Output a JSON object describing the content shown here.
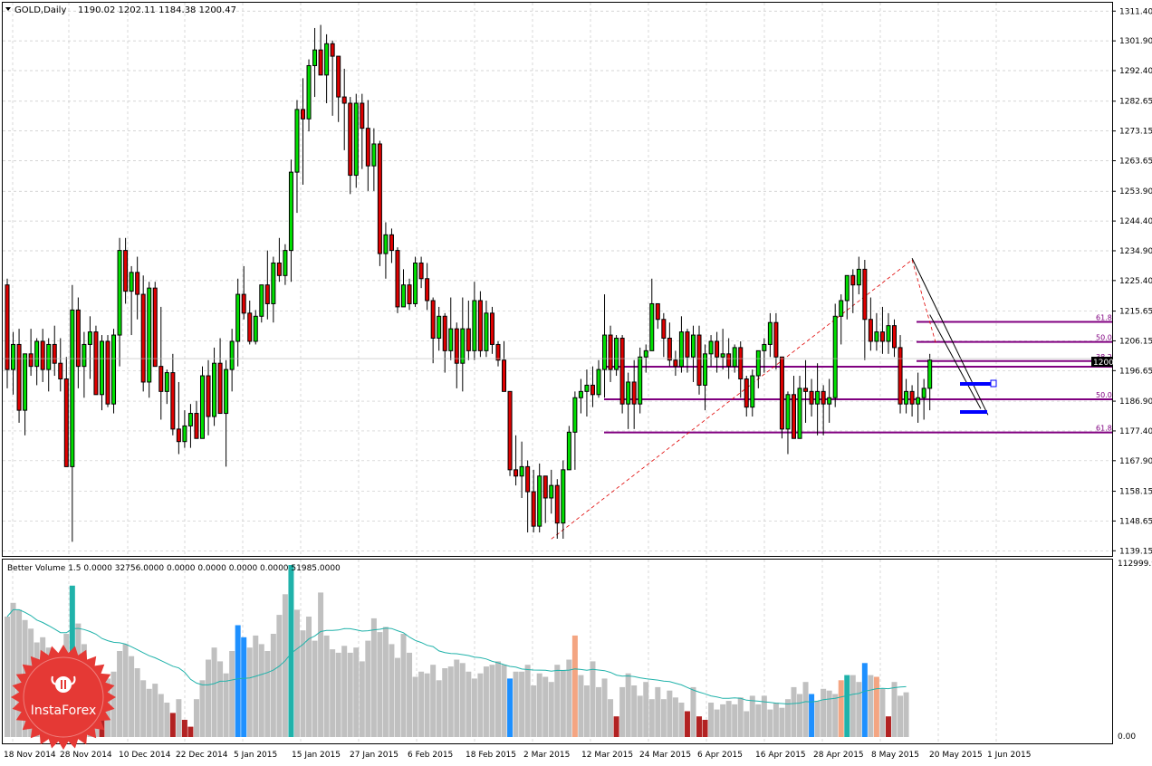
{
  "header": {
    "symbol_label": "GOLD,Daily",
    "ohlc_label": "1190.02 1202.11 1184.38 1200.47"
  },
  "volume_header": {
    "label": "Better Volume 1.5 0.0000 32756.0000 0.0000 0.0000 0.0000 0.0000 51985.0000"
  },
  "colors": {
    "background": "#ffffff",
    "grid": "#c8c8c8",
    "bull": "#00e000",
    "bear": "#e00000",
    "wick": "#000000",
    "fib": "#800080",
    "fib_diag": "#e00000",
    "trend": "#000000",
    "pattern": "#0000ff",
    "vol_gray": "#c0c0c0",
    "vol_teal": "#20b2aa",
    "vol_blue": "#1e90ff",
    "vol_darkred": "#b22222",
    "vol_salmon": "#f4a582",
    "vol_ma": "#20b2aa",
    "badge": "#e53935"
  },
  "brand": {
    "logo_text": "InstaForex"
  },
  "chart_data": {
    "type": "candlestick",
    "title": "GOLD,Daily",
    "x_ticks": [
      "18 Nov 2014",
      "28 Nov 2014",
      "10 Dec 2014",
      "22 Dec 2014",
      "5 Jan 2015",
      "15 Jan 2015",
      "27 Jan 2015",
      "6 Feb 2015",
      "18 Feb 2015",
      "2 Mar 2015",
      "12 Mar 2015",
      "24 Mar 2015",
      "6 Apr 2015",
      "16 Apr 2015",
      "28 Apr 2015",
      "8 May 2015",
      "20 May 2015",
      "1 Jun 2015"
    ],
    "y_ticks": [
      "1311.40",
      "1301.90",
      "1292.40",
      "1282.65",
      "1273.15",
      "1263.65",
      "1253.90",
      "1244.40",
      "1234.90",
      "1225.40",
      "1215.65",
      "1206.15",
      "1196.65",
      "1186.90",
      "1177.40",
      "1167.90",
      "1158.15",
      "1148.65",
      "1139.15"
    ],
    "ylim": [
      1137.5,
      1313.5
    ],
    "current_price": "1200.47",
    "fib_levels": [
      {
        "label": "61.8",
        "value": 1212.2
      },
      {
        "label": "50.0",
        "value": 1205.8
      },
      {
        "label": "38.2",
        "value": 1199.7
      },
      {
        "label": "38.2",
        "value": 1197.9
      },
      {
        "label": "50.0",
        "value": 1187.5
      },
      {
        "label": "61.8",
        "value": 1176.9
      }
    ],
    "volume_y_ticks": [
      "112999.9",
      "0.00"
    ],
    "candles": [
      [
        1224,
        1226,
        1191,
        1197
      ],
      [
        1197,
        1209,
        1189,
        1205
      ],
      [
        1205,
        1210,
        1180,
        1184
      ],
      [
        1184,
        1202,
        1176,
        1202
      ],
      [
        1202,
        1210,
        1195,
        1198
      ],
      [
        1198,
        1207,
        1192,
        1206
      ],
      [
        1206,
        1210,
        1193,
        1197
      ],
      [
        1197,
        1207,
        1190,
        1205
      ],
      [
        1205,
        1211,
        1195,
        1199
      ],
      [
        1199,
        1207,
        1190,
        1194
      ],
      [
        1194,
        1201,
        1166,
        1166
      ],
      [
        1166,
        1224,
        1142,
        1216
      ],
      [
        1216,
        1220,
        1191,
        1198
      ],
      [
        1198,
        1209,
        1188,
        1205
      ],
      [
        1205,
        1214,
        1194,
        1209
      ],
      [
        1209,
        1211,
        1189,
        1189
      ],
      [
        1189,
        1208,
        1184,
        1206
      ],
      [
        1206,
        1208,
        1185,
        1186
      ],
      [
        1186,
        1210,
        1183,
        1208
      ],
      [
        1208,
        1239,
        1198,
        1235
      ],
      [
        1235,
        1239,
        1218,
        1222
      ],
      [
        1222,
        1230,
        1208,
        1228
      ],
      [
        1228,
        1233,
        1213,
        1221
      ],
      [
        1221,
        1227,
        1190,
        1193
      ],
      [
        1193,
        1225,
        1188,
        1223
      ],
      [
        1223,
        1225,
        1198,
        1198
      ],
      [
        1198,
        1217,
        1181,
        1190
      ],
      [
        1190,
        1197,
        1186,
        1196
      ],
      [
        1196,
        1202,
        1176,
        1178
      ],
      [
        1178,
        1193,
        1170,
        1174
      ],
      [
        1174,
        1184,
        1172,
        1179
      ],
      [
        1179,
        1186,
        1172,
        1183
      ],
      [
        1183,
        1187,
        1175,
        1175
      ],
      [
        1175,
        1198,
        1175,
        1195
      ],
      [
        1195,
        1200,
        1176,
        1182
      ],
      [
        1182,
        1204,
        1179,
        1199
      ],
      [
        1199,
        1207,
        1183,
        1183
      ],
      [
        1183,
        1200,
        1166,
        1197
      ],
      [
        1197,
        1210,
        1190,
        1206
      ],
      [
        1206,
        1226,
        1198,
        1221
      ],
      [
        1221,
        1230,
        1213,
        1215
      ],
      [
        1215,
        1219,
        1205,
        1206
      ],
      [
        1206,
        1216,
        1205,
        1214
      ],
      [
        1214,
        1224,
        1212,
        1224
      ],
      [
        1224,
        1235,
        1213,
        1218
      ],
      [
        1218,
        1233,
        1212,
        1231
      ],
      [
        1231,
        1239,
        1225,
        1227
      ],
      [
        1227,
        1237,
        1224,
        1235
      ],
      [
        1235,
        1264,
        1225,
        1260
      ],
      [
        1260,
        1283,
        1247,
        1280
      ],
      [
        1280,
        1290,
        1256,
        1277
      ],
      [
        1277,
        1296,
        1273,
        1294
      ],
      [
        1294,
        1306,
        1284,
        1299
      ],
      [
        1299,
        1307,
        1291,
        1291
      ],
      [
        1291,
        1304,
        1282,
        1301
      ],
      [
        1301,
        1302,
        1278,
        1297
      ],
      [
        1297,
        1297,
        1276,
        1284
      ],
      [
        1284,
        1293,
        1267,
        1282
      ],
      [
        1282,
        1284,
        1253,
        1259
      ],
      [
        1259,
        1285,
        1255,
        1282
      ],
      [
        1282,
        1285,
        1261,
        1274
      ],
      [
        1274,
        1283,
        1254,
        1262
      ],
      [
        1262,
        1274,
        1254,
        1269
      ],
      [
        1269,
        1270,
        1230,
        1234
      ],
      [
        1234,
        1244,
        1226,
        1240
      ],
      [
        1240,
        1242,
        1231,
        1235
      ],
      [
        1235,
        1236,
        1215,
        1217
      ],
      [
        1217,
        1229,
        1217,
        1224
      ],
      [
        1224,
        1226,
        1216,
        1218
      ],
      [
        1218,
        1233,
        1217,
        1231
      ],
      [
        1231,
        1233,
        1223,
        1226
      ],
      [
        1226,
        1231,
        1216,
        1219
      ],
      [
        1219,
        1220,
        1199,
        1207
      ],
      [
        1207,
        1217,
        1203,
        1214
      ],
      [
        1214,
        1215,
        1196,
        1203
      ],
      [
        1203,
        1220,
        1200,
        1210
      ],
      [
        1210,
        1212,
        1191,
        1199
      ],
      [
        1199,
        1220,
        1190,
        1210
      ],
      [
        1210,
        1219,
        1200,
        1203
      ],
      [
        1203,
        1225,
        1200,
        1219
      ],
      [
        1219,
        1222,
        1201,
        1203
      ],
      [
        1203,
        1219,
        1201,
        1215
      ],
      [
        1215,
        1217,
        1202,
        1205
      ],
      [
        1205,
        1206,
        1198,
        1200
      ],
      [
        1200,
        1206,
        1190,
        1190
      ],
      [
        1190,
        1190,
        1163,
        1165
      ],
      [
        1165,
        1176,
        1160,
        1163
      ],
      [
        1163,
        1174,
        1156,
        1166
      ],
      [
        1166,
        1168,
        1145,
        1158
      ],
      [
        1158,
        1165,
        1145,
        1147
      ],
      [
        1147,
        1167,
        1145,
        1163
      ],
      [
        1163,
        1163,
        1148,
        1156
      ],
      [
        1156,
        1165,
        1151,
        1160
      ],
      [
        1160,
        1162,
        1143,
        1148
      ],
      [
        1148,
        1168,
        1143,
        1165
      ],
      [
        1165,
        1179,
        1165,
        1177
      ],
      [
        1177,
        1190,
        1165,
        1188
      ],
      [
        1188,
        1194,
        1183,
        1190
      ],
      [
        1190,
        1197,
        1182,
        1192
      ],
      [
        1192,
        1198,
        1185,
        1189
      ],
      [
        1189,
        1200,
        1188,
        1197
      ],
      [
        1197,
        1221,
        1188,
        1208
      ],
      [
        1208,
        1211,
        1193,
        1197
      ],
      [
        1197,
        1208,
        1195,
        1207
      ],
      [
        1207,
        1208,
        1183,
        1186
      ],
      [
        1186,
        1196,
        1178,
        1193
      ],
      [
        1193,
        1200,
        1178,
        1186
      ],
      [
        1186,
        1204,
        1183,
        1201
      ],
      [
        1201,
        1205,
        1196,
        1203
      ],
      [
        1203,
        1226,
        1203,
        1218
      ],
      [
        1218,
        1218,
        1210,
        1213
      ],
      [
        1213,
        1215,
        1201,
        1207
      ],
      [
        1207,
        1212,
        1198,
        1200
      ],
      [
        1200,
        1203,
        1195,
        1198
      ],
      [
        1198,
        1214,
        1196,
        1209
      ],
      [
        1209,
        1210,
        1196,
        1201
      ],
      [
        1201,
        1211,
        1193,
        1208
      ],
      [
        1208,
        1211,
        1189,
        1192
      ],
      [
        1192,
        1205,
        1184,
        1202
      ],
      [
        1202,
        1208,
        1198,
        1206
      ],
      [
        1206,
        1209,
        1196,
        1201
      ],
      [
        1201,
        1210,
        1197,
        1202
      ],
      [
        1202,
        1207,
        1194,
        1198
      ],
      [
        1198,
        1205,
        1196,
        1204
      ],
      [
        1204,
        1206,
        1188,
        1194
      ],
      [
        1194,
        1195,
        1182,
        1185
      ],
      [
        1185,
        1197,
        1182,
        1195
      ],
      [
        1195,
        1203,
        1191,
        1203
      ],
      [
        1203,
        1207,
        1196,
        1205
      ],
      [
        1205,
        1215,
        1201,
        1212
      ],
      [
        1212,
        1215,
        1197,
        1201
      ],
      [
        1201,
        1201,
        1175,
        1178
      ],
      [
        1178,
        1190,
        1170,
        1189
      ],
      [
        1189,
        1195,
        1175,
        1175
      ],
      [
        1175,
        1195,
        1175,
        1191
      ],
      [
        1191,
        1200,
        1180,
        1190
      ],
      [
        1190,
        1194,
        1182,
        1186
      ],
      [
        1186,
        1199,
        1176,
        1190
      ],
      [
        1190,
        1192,
        1176,
        1186
      ],
      [
        1186,
        1194,
        1180,
        1188
      ],
      [
        1188,
        1218,
        1185,
        1214
      ],
      [
        1214,
        1221,
        1205,
        1219
      ],
      [
        1219,
        1227,
        1213,
        1227
      ],
      [
        1227,
        1229,
        1215,
        1224
      ],
      [
        1224,
        1233,
        1221,
        1229
      ],
      [
        1229,
        1232,
        1200,
        1213
      ],
      [
        1213,
        1220,
        1203,
        1206
      ],
      [
        1206,
        1215,
        1203,
        1209
      ],
      [
        1209,
        1217,
        1202,
        1206
      ],
      [
        1206,
        1215,
        1202,
        1211
      ],
      [
        1211,
        1213,
        1201,
        1204
      ],
      [
        1204,
        1208,
        1183,
        1186
      ],
      [
        1186,
        1194,
        1183,
        1190
      ],
      [
        1190,
        1192,
        1182,
        1186
      ],
      [
        1186,
        1196,
        1180,
        1188
      ],
      [
        1188,
        1194,
        1181,
        1191
      ],
      [
        1191,
        1202,
        1184,
        1200
      ]
    ],
    "volume": [
      [
        70,
        "g"
      ],
      [
        78,
        "g"
      ],
      [
        74,
        "g"
      ],
      [
        68,
        "g"
      ],
      [
        63,
        "g"
      ],
      [
        55,
        "g"
      ],
      [
        58,
        "g"
      ],
      [
        52,
        "g"
      ],
      [
        47,
        "g"
      ],
      [
        42,
        "g"
      ],
      [
        60,
        "g"
      ],
      [
        88,
        "t"
      ],
      [
        66,
        "g"
      ],
      [
        54,
        "g"
      ],
      [
        45,
        "g"
      ],
      [
        37,
        "g"
      ],
      [
        17,
        "d"
      ],
      [
        34,
        "g"
      ],
      [
        38,
        "g"
      ],
      [
        50,
        "g"
      ],
      [
        54,
        "g"
      ],
      [
        47,
        "g"
      ],
      [
        40,
        "g"
      ],
      [
        33,
        "g"
      ],
      [
        28,
        "g"
      ],
      [
        31,
        "g"
      ],
      [
        25,
        "g"
      ],
      [
        20,
        "g"
      ],
      [
        14,
        "d"
      ],
      [
        22,
        "g"
      ],
      [
        10,
        "d"
      ],
      [
        6,
        "d"
      ],
      [
        22,
        "g"
      ],
      [
        33,
        "g"
      ],
      [
        45,
        "g"
      ],
      [
        52,
        "g"
      ],
      [
        44,
        "g"
      ],
      [
        37,
        "g"
      ],
      [
        50,
        "g"
      ],
      [
        65,
        "b"
      ],
      [
        58,
        "b"
      ],
      [
        52,
        "g"
      ],
      [
        59,
        "g"
      ],
      [
        54,
        "g"
      ],
      [
        50,
        "g"
      ],
      [
        60,
        "g"
      ],
      [
        71,
        "g"
      ],
      [
        83,
        "g"
      ],
      [
        100,
        "t"
      ],
      [
        74,
        "g"
      ],
      [
        62,
        "g"
      ],
      [
        70,
        "g"
      ],
      [
        56,
        "g"
      ],
      [
        84,
        "g"
      ],
      [
        59,
        "g"
      ],
      [
        51,
        "g"
      ],
      [
        49,
        "g"
      ],
      [
        53,
        "g"
      ],
      [
        49,
        "g"
      ],
      [
        52,
        "g"
      ],
      [
        44,
        "g"
      ],
      [
        56,
        "g"
      ],
      [
        69,
        "g"
      ],
      [
        61,
        "g"
      ],
      [
        64,
        "g"
      ],
      [
        54,
        "g"
      ],
      [
        46,
        "g"
      ],
      [
        60,
        "g"
      ],
      [
        49,
        "g"
      ],
      [
        35,
        "g"
      ],
      [
        38,
        "g"
      ],
      [
        37,
        "g"
      ],
      [
        42,
        "g"
      ],
      [
        33,
        "g"
      ],
      [
        40,
        "g"
      ],
      [
        41,
        "g"
      ],
      [
        45,
        "g"
      ],
      [
        43,
        "g"
      ],
      [
        38,
        "g"
      ],
      [
        34,
        "g"
      ],
      [
        37,
        "g"
      ],
      [
        41,
        "g"
      ],
      [
        42,
        "g"
      ],
      [
        44,
        "g"
      ],
      [
        42,
        "g"
      ],
      [
        34,
        "b"
      ],
      [
        38,
        "g"
      ],
      [
        38,
        "g"
      ],
      [
        42,
        "g"
      ],
      [
        30,
        "g"
      ],
      [
        37,
        "g"
      ],
      [
        35,
        "g"
      ],
      [
        32,
        "g"
      ],
      [
        42,
        "g"
      ],
      [
        39,
        "g"
      ],
      [
        45,
        "g"
      ],
      [
        59,
        "s"
      ],
      [
        36,
        "g"
      ],
      [
        30,
        "g"
      ],
      [
        44,
        "g"
      ],
      [
        29,
        "g"
      ],
      [
        34,
        "g"
      ],
      [
        22,
        "g"
      ],
      [
        12,
        "d"
      ],
      [
        29,
        "g"
      ],
      [
        37,
        "g"
      ],
      [
        30,
        "g"
      ],
      [
        24,
        "g"
      ],
      [
        32,
        "g"
      ],
      [
        22,
        "g"
      ],
      [
        29,
        "g"
      ],
      [
        22,
        "g"
      ],
      [
        27,
        "g"
      ],
      [
        23,
        "g"
      ],
      [
        20,
        "g"
      ],
      [
        15,
        "d"
      ],
      [
        29,
        "g"
      ],
      [
        12,
        "d"
      ],
      [
        10,
        "d"
      ],
      [
        20,
        "g"
      ],
      [
        16,
        "g"
      ],
      [
        19,
        "g"
      ],
      [
        21,
        "g"
      ],
      [
        19,
        "g"
      ],
      [
        23,
        "g"
      ],
      [
        15,
        "g"
      ],
      [
        24,
        "g"
      ],
      [
        19,
        "g"
      ],
      [
        24,
        "g"
      ],
      [
        16,
        "g"
      ],
      [
        20,
        "g"
      ],
      [
        17,
        "g"
      ],
      [
        22,
        "g"
      ],
      [
        29,
        "g"
      ],
      [
        25,
        "g"
      ],
      [
        32,
        "g"
      ],
      [
        25,
        "b"
      ],
      [
        21,
        "g"
      ],
      [
        28,
        "g"
      ],
      [
        27,
        "g"
      ],
      [
        25,
        "g"
      ],
      [
        33,
        "s"
      ],
      [
        36,
        "t"
      ],
      [
        36,
        "g"
      ],
      [
        32,
        "g"
      ],
      [
        43,
        "b"
      ],
      [
        36,
        "g"
      ],
      [
        35,
        "s"
      ],
      [
        28,
        "g"
      ],
      [
        12,
        "d"
      ],
      [
        32,
        "g"
      ],
      [
        24,
        "g"
      ],
      [
        26,
        "g"
      ]
    ]
  }
}
